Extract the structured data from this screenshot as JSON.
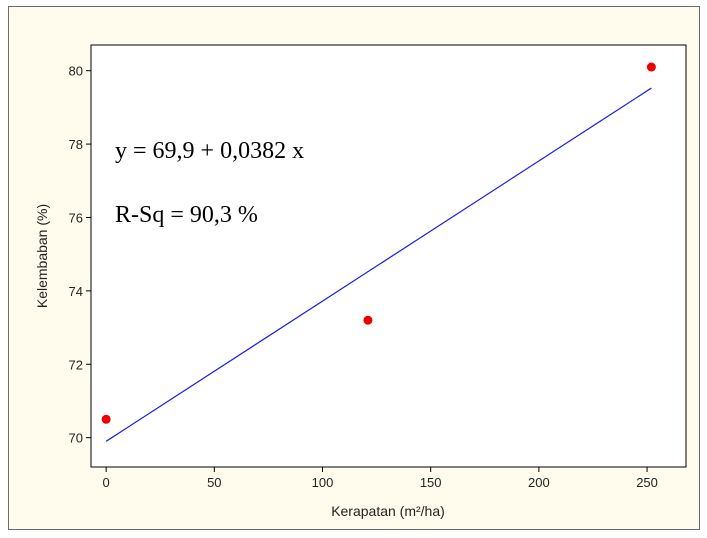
{
  "chart_data": {
    "type": "scatter",
    "xlabel": "Kerapatan (m²/ha)",
    "ylabel": "Kelembaban (%)",
    "xlim": [
      -7,
      268
    ],
    "ylim": [
      69.2,
      80.7
    ],
    "x_ticks": [
      0,
      50,
      100,
      150,
      200,
      250
    ],
    "y_ticks": [
      70,
      72,
      74,
      76,
      78,
      80
    ],
    "points": [
      {
        "x": 0,
        "y": 70.5
      },
      {
        "x": 121,
        "y": 73.2
      },
      {
        "x": 252,
        "y": 80.1
      }
    ],
    "fit_line": {
      "intercept": 69.9,
      "slope": 0.0382,
      "x_range": [
        0,
        252
      ]
    },
    "annotations": [
      "y = 69,9 + 0,0382 x",
      "R-Sq = 90,3 %"
    ],
    "grid": false,
    "colors": {
      "points": "#ee0000",
      "fit_line": "#1a1aee",
      "frame_background": "#fffcee",
      "plot_background": "#ffffff"
    }
  }
}
